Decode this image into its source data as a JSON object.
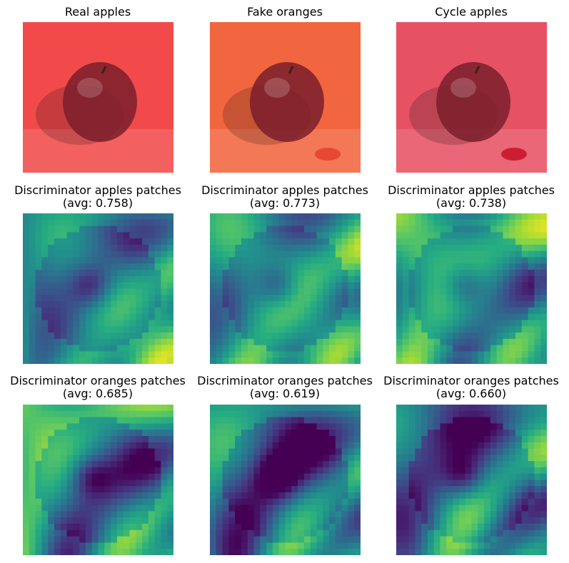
{
  "panels": [
    {
      "title": "Real apples",
      "subtitle": "",
      "kind": "photo",
      "tint": "#f24a4a",
      "accent": ""
    },
    {
      "title": "Fake oranges",
      "subtitle": "",
      "kind": "photo",
      "tint": "#f2663f",
      "accent": "#e5402a"
    },
    {
      "title": "Cycle apples",
      "subtitle": "",
      "kind": "photo",
      "tint": "#e65263",
      "accent": "#c8102a"
    },
    {
      "title": "Discriminator apples patches",
      "subtitle": "(avg: 0.758)",
      "kind": "heatmap",
      "avg": 0.758
    },
    {
      "title": "Discriminator apples patches",
      "subtitle": "(avg: 0.773)",
      "kind": "heatmap",
      "avg": 0.773
    },
    {
      "title": "Discriminator apples patches",
      "subtitle": "(avg: 0.738)",
      "kind": "heatmap",
      "avg": 0.738
    },
    {
      "title": "Discriminator oranges patches",
      "subtitle": "(avg: 0.685)",
      "kind": "heatmap",
      "avg": 0.685
    },
    {
      "title": "Discriminator oranges patches",
      "subtitle": "(avg: 0.619)",
      "kind": "heatmap",
      "avg": 0.619
    },
    {
      "title": "Discriminator oranges patches",
      "subtitle": "(avg: 0.660)",
      "kind": "heatmap",
      "avg": 0.66
    }
  ],
  "colormap": "viridis"
}
